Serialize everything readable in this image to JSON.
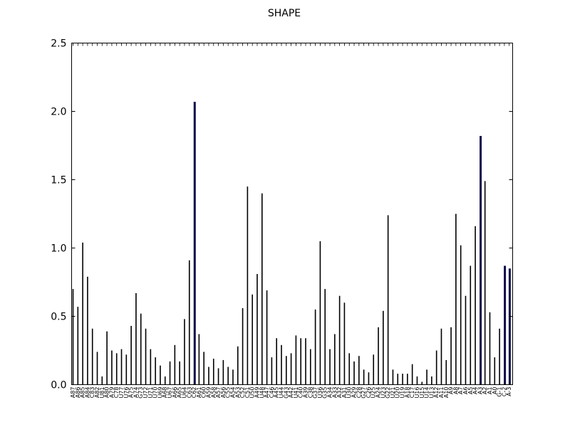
{
  "chart_data": {
    "type": "bar",
    "title": "SHAPE",
    "xlabel": "",
    "ylabel": "",
    "ylim": [
      0,
      2.5
    ],
    "yticks": [
      "0.0",
      "0.5",
      "1.0",
      "1.5",
      "2.0",
      "2.5"
    ],
    "grid": false,
    "categories": [
      "A87",
      "A86",
      "A85",
      "A84",
      "C83",
      "A82",
      "U81",
      "A80",
      "A79",
      "C78",
      "U77",
      "U76",
      "A75",
      "A74",
      "G73",
      "U72",
      "U71",
      "U70",
      "U69",
      "A68",
      "U67",
      "A66",
      "A65",
      "U64",
      "C63",
      "C62",
      "A61",
      "C60",
      "A59",
      "A58",
      "A57",
      "A56",
      "C55",
      "A54",
      "A53",
      "C52",
      "C51",
      "U50",
      "A49",
      "U48",
      "A47",
      "C46",
      "A45",
      "U44",
      "G43",
      "A42",
      "U41",
      "C40",
      "A39",
      "C38",
      "G37",
      "U36",
      "G35",
      "A34",
      "A33",
      "A32",
      "A31",
      "U30",
      "A29",
      "C28",
      "G27",
      "C26",
      "U25",
      "A24",
      "U23",
      "G22",
      "U21",
      "U20",
      "U19",
      "A18",
      "C17",
      "U16",
      "U15",
      "U14",
      "U13",
      "A12",
      "A11",
      "A10",
      "A9",
      "A8",
      "A7",
      "A6",
      "A5",
      "A4",
      "A3",
      "A2",
      "A1",
      "A0",
      "G-1",
      "C-2",
      "A-3"
    ],
    "values": [
      0.7,
      0.57,
      1.04,
      0.79,
      0.41,
      0.24,
      0.06,
      0.39,
      0.25,
      0.23,
      0.26,
      0.22,
      0.43,
      0.67,
      0.52,
      0.41,
      0.26,
      0.2,
      0.14,
      0.06,
      0.17,
      0.29,
      0.17,
      0.48,
      0.91,
      2.07,
      0.37,
      0.24,
      0.13,
      0.19,
      0.12,
      0.18,
      0.13,
      0.11,
      0.28,
      0.56,
      1.45,
      0.66,
      0.81,
      1.4,
      0.69,
      0.2,
      0.34,
      0.29,
      0.21,
      0.23,
      0.36,
      0.34,
      0.34,
      0.26,
      0.55,
      1.05,
      0.7,
      0.26,
      0.37,
      0.65,
      0.6,
      0.23,
      0.17,
      0.21,
      0.11,
      0.09,
      0.22,
      0.42,
      0.54,
      1.24,
      0.11,
      0.08,
      0.08,
      0.08,
      0.15,
      0.06,
      0.02,
      0.11,
      0.06,
      0.25,
      0.41,
      0.18,
      0.42,
      1.25,
      1.02,
      0.65,
      0.87,
      1.16,
      1.82,
      1.49,
      0.53,
      0.2,
      0.41,
      0.87,
      0.85
    ],
    "bar_color": "#000000",
    "highlight_color": "#0b0b4a",
    "highlighted": [
      "C62",
      "U22",
      "A3",
      "C-2",
      "A-3"
    ]
  }
}
